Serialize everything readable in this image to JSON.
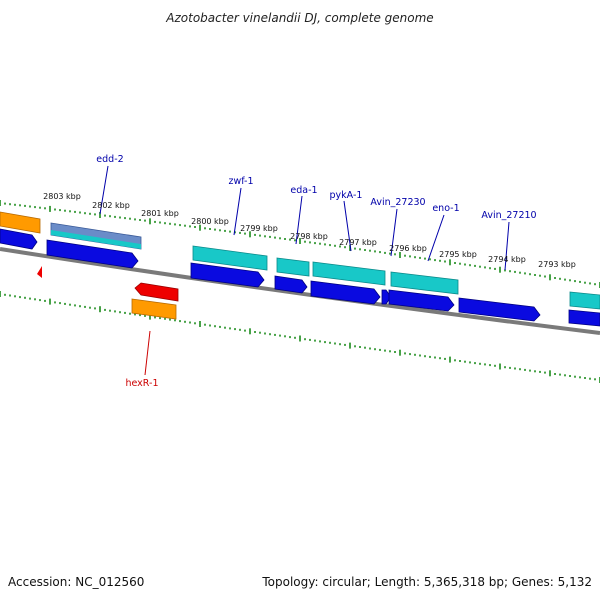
{
  "title": "Azotobacter vinelandii DJ, complete genome",
  "footer": {
    "accession": "Accession: NC_012560",
    "topology": "Topology: circular; Length: 5,365,318 bp; Genes: 5,132"
  },
  "colors": {
    "background": "#ffffff",
    "backbone": "#808080",
    "tick_green": "#1a8a1a",
    "label_blue": "#0000aa",
    "label_red": "#cc0000",
    "cds_blue": "#0a0ae0",
    "cds_cyan": "#18c8c8",
    "cds_orange": "#ff9a00",
    "cds_red": "#ee0000",
    "cds_steel": "#6a8cc8"
  },
  "scale_labels": [
    "2803 kbp",
    "2802 kbp",
    "2801 kbp",
    "2800 kbp",
    "2799 kbp",
    "2798 kbp",
    "2797 kbp",
    "2796 kbp",
    "2795 kbp",
    "2794 kbp",
    "2793 kbp"
  ],
  "gene_labels": [
    {
      "name": "edd-2",
      "color": "#0000aa"
    },
    {
      "name": "zwf-1",
      "color": "#0000aa"
    },
    {
      "name": "eda-1",
      "color": "#0000aa"
    },
    {
      "name": "pykA-1",
      "color": "#0000aa"
    },
    {
      "name": "Avin_27230",
      "color": "#0000aa"
    },
    {
      "name": "eno-1",
      "color": "#0000aa"
    },
    {
      "name": "Avin_27210",
      "color": "#0000aa"
    },
    {
      "name": "hexR-1",
      "color": "#cc0000"
    }
  ]
}
